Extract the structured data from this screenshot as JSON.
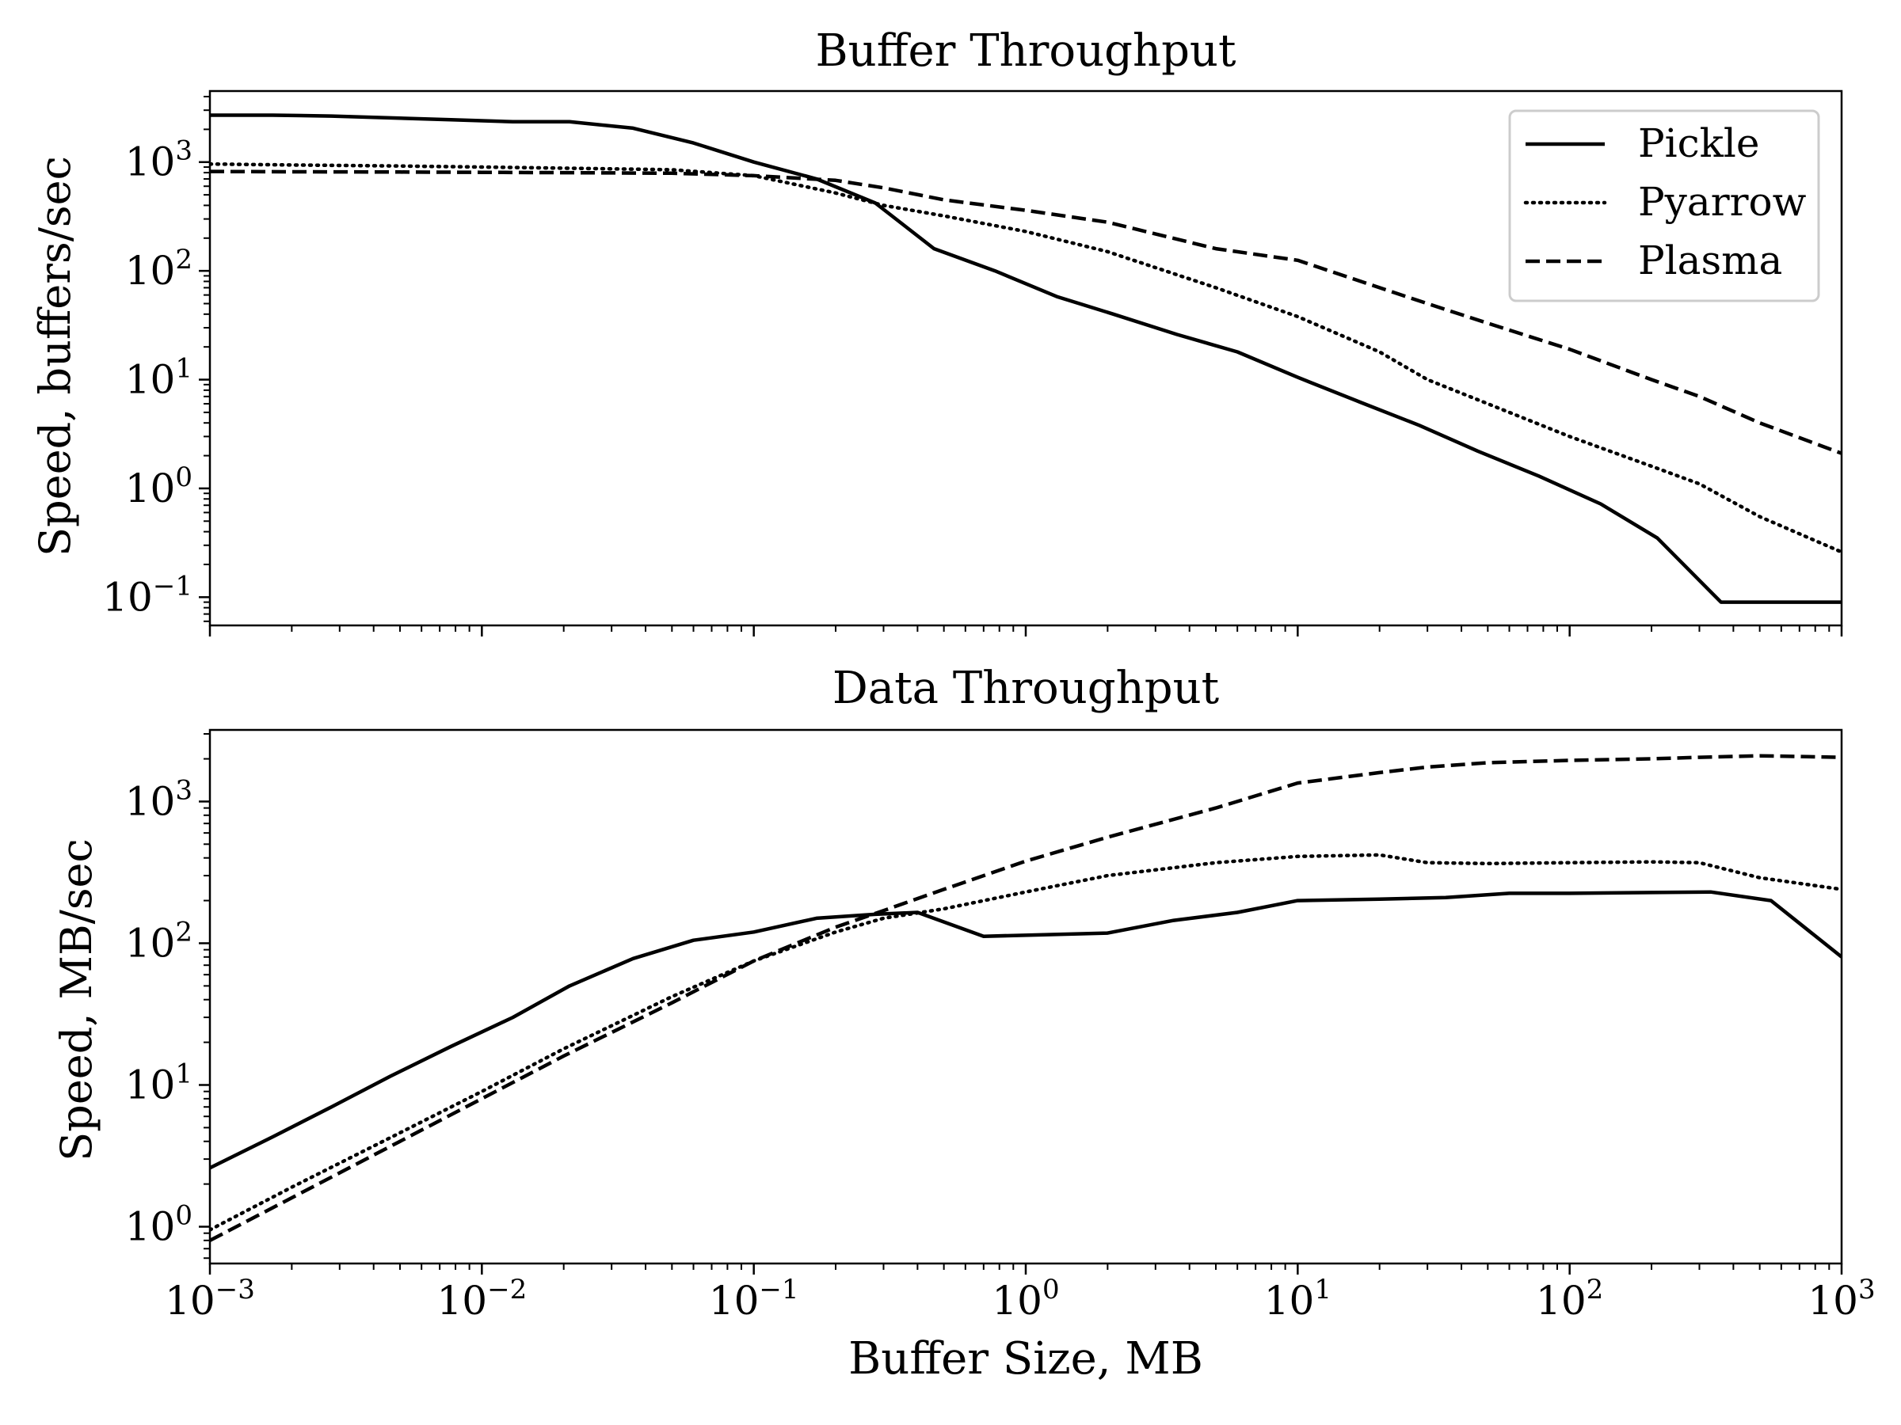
{
  "chart_data": [
    {
      "type": "line",
      "title": "Buffer Throughput",
      "xlabel": "",
      "ylabel": "Speed, buffers/sec",
      "xscale": "log",
      "yscale": "log",
      "xlim": [
        0.001,
        1000
      ],
      "ylim": [
        0.055,
        4500
      ],
      "y_ticks": [
        {
          "value": 0.1,
          "base": "10",
          "exp": "−1"
        },
        {
          "value": 1,
          "base": "10",
          "exp": "0"
        },
        {
          "value": 10,
          "base": "10",
          "exp": "1"
        },
        {
          "value": 100,
          "base": "10",
          "exp": "2"
        },
        {
          "value": 1000,
          "base": "10",
          "exp": "3"
        }
      ],
      "legend": {
        "position": "top-right",
        "entries": [
          "Pickle",
          "Pyarrow",
          "Plasma"
        ]
      },
      "series": [
        {
          "name": "Pickle",
          "style": "solid",
          "x": [
            0.001,
            0.0017,
            0.0028,
            0.0046,
            0.0077,
            0.013,
            0.021,
            0.036,
            0.06,
            0.1,
            0.17,
            0.28,
            0.46,
            0.77,
            1.3,
            2.1,
            3.6,
            6,
            10,
            17,
            28,
            46,
            77,
            130,
            210,
            360,
            600,
            1000
          ],
          "y": [
            2700,
            2700,
            2650,
            2550,
            2450,
            2350,
            2350,
            2050,
            1500,
            1000,
            700,
            420,
            160,
            100,
            58,
            40,
            26,
            18,
            10.5,
            6.2,
            3.8,
            2.2,
            1.3,
            0.72,
            0.35,
            0.09,
            0.09,
            0.09
          ]
        },
        {
          "name": "Pyarrow",
          "style": "dotted",
          "x": [
            0.001,
            0.002,
            0.005,
            0.01,
            0.02,
            0.05,
            0.1,
            0.2,
            0.3,
            0.5,
            1,
            2,
            5,
            10,
            20,
            30,
            50,
            100,
            200,
            300,
            500,
            1000
          ],
          "y": [
            960,
            940,
            920,
            900,
            880,
            850,
            750,
            520,
            400,
            320,
            230,
            150,
            70,
            38,
            18,
            10,
            6,
            3,
            1.6,
            1.1,
            0.55,
            0.26
          ]
        },
        {
          "name": "Plasma",
          "style": "dashed",
          "x": [
            0.001,
            0.002,
            0.005,
            0.01,
            0.02,
            0.05,
            0.1,
            0.2,
            0.3,
            0.5,
            1,
            2,
            5,
            10,
            20,
            30,
            50,
            100,
            200,
            300,
            500,
            1000
          ],
          "y": [
            820,
            815,
            810,
            805,
            800,
            790,
            750,
            680,
            580,
            450,
            360,
            280,
            160,
            125,
            70,
            50,
            33,
            19,
            10,
            7,
            4,
            2.1
          ]
        }
      ]
    },
    {
      "type": "line",
      "title": "Data Throughput",
      "xlabel": "Buffer Size, MB",
      "ylabel": "Speed, MB/sec",
      "xscale": "log",
      "yscale": "log",
      "xlim": [
        0.001,
        1000
      ],
      "ylim": [
        0.55,
        3200
      ],
      "x_ticks": [
        {
          "value": 0.001,
          "base": "10",
          "exp": "−3"
        },
        {
          "value": 0.01,
          "base": "10",
          "exp": "−2"
        },
        {
          "value": 0.1,
          "base": "10",
          "exp": "−1"
        },
        {
          "value": 1,
          "base": "10",
          "exp": "0"
        },
        {
          "value": 10,
          "base": "10",
          "exp": "1"
        },
        {
          "value": 100,
          "base": "10",
          "exp": "2"
        },
        {
          "value": 1000,
          "base": "10",
          "exp": "3"
        }
      ],
      "y_ticks": [
        {
          "value": 1,
          "base": "10",
          "exp": "0"
        },
        {
          "value": 10,
          "base": "10",
          "exp": "1"
        },
        {
          "value": 100,
          "base": "10",
          "exp": "2"
        },
        {
          "value": 1000,
          "base": "10",
          "exp": "3"
        }
      ],
      "series": [
        {
          "name": "Pickle",
          "style": "solid",
          "x": [
            0.001,
            0.0017,
            0.0028,
            0.0046,
            0.0077,
            0.013,
            0.021,
            0.036,
            0.06,
            0.1,
            0.17,
            0.28,
            0.4,
            0.7,
            1.2,
            2,
            3.5,
            6,
            10,
            20,
            35,
            60,
            100,
            200,
            330,
            550,
            1000
          ],
          "y": [
            2.6,
            4.3,
            7,
            11.5,
            18.7,
            30,
            50,
            78,
            105,
            120,
            150,
            160,
            165,
            112,
            115,
            118,
            145,
            165,
            200,
            205,
            210,
            225,
            225,
            228,
            230,
            200,
            80
          ]
        },
        {
          "name": "Pyarrow",
          "style": "dotted",
          "x": [
            0.001,
            0.002,
            0.005,
            0.01,
            0.02,
            0.05,
            0.1,
            0.2,
            0.3,
            0.5,
            1,
            2,
            5,
            10,
            20,
            30,
            50,
            100,
            200,
            300,
            500,
            1000
          ],
          "y": [
            0.95,
            1.9,
            4.6,
            9,
            18,
            42,
            75,
            120,
            150,
            175,
            230,
            300,
            370,
            410,
            420,
            370,
            365,
            370,
            375,
            370,
            290,
            240
          ]
        },
        {
          "name": "Plasma",
          "style": "dashed",
          "x": [
            0.001,
            0.002,
            0.005,
            0.01,
            0.02,
            0.05,
            0.1,
            0.2,
            0.3,
            0.5,
            1,
            2,
            5,
            10,
            20,
            30,
            50,
            100,
            200,
            300,
            500,
            1000
          ],
          "y": [
            0.8,
            1.6,
            4,
            8,
            16,
            38,
            75,
            130,
            170,
            240,
            380,
            560,
            900,
            1350,
            1600,
            1750,
            1880,
            1950,
            2000,
            2050,
            2100,
            2050
          ]
        }
      ]
    }
  ]
}
